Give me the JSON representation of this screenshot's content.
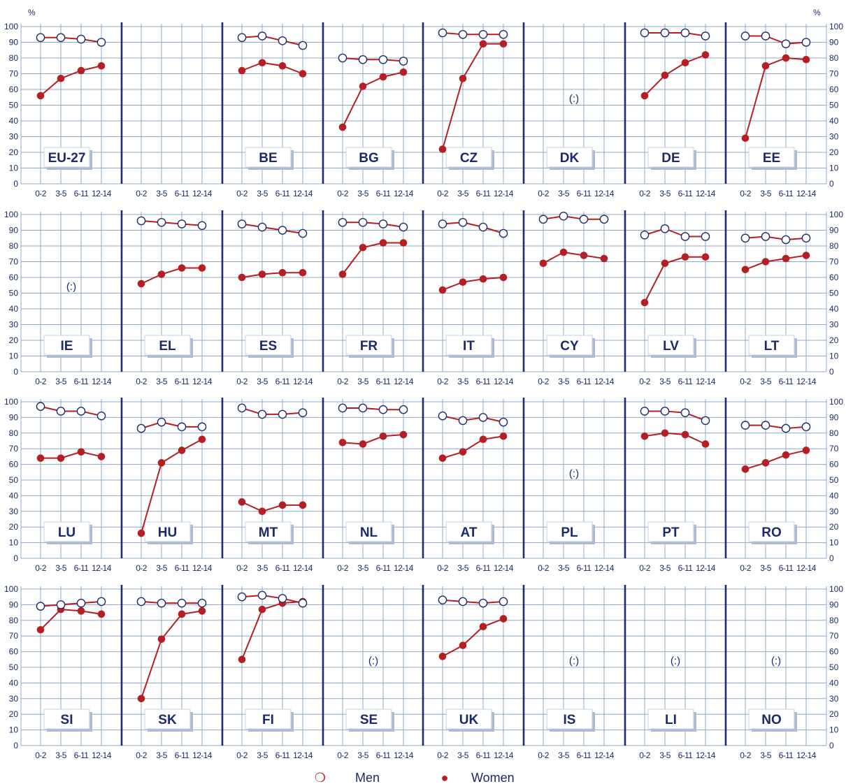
{
  "colors": {
    "grid": "#8ea8c8",
    "divider": "#1f2d6e",
    "text": "#1a2a6a",
    "men": "#b51f24",
    "women": "#b51f24",
    "label_shadow": "#aabbd3"
  },
  "chart_data": {
    "type": "line",
    "unit": "%",
    "categories": [
      "0-2",
      "3-5",
      "6-11",
      "12-14"
    ],
    "yticks": [
      "0",
      "10",
      "20",
      "30",
      "40",
      "50",
      "60",
      "70",
      "80",
      "90",
      "100"
    ],
    "ylim": [
      0,
      100
    ],
    "grid": true,
    "legend": {
      "position": "bottom-center",
      "men_label": "Men",
      "women_label": "Women",
      "men_symbol": "❍",
      "women_symbol": "●"
    },
    "missing_label": "(:)",
    "rows": [
      [
        {
          "code": "EU-27",
          "men": [
            93,
            93,
            92,
            90
          ],
          "women": [
            56,
            67,
            72,
            75
          ]
        },
        {
          "code": "",
          "men": null,
          "women": null
        },
        {
          "code": "BE",
          "men": [
            93,
            94,
            91,
            88
          ],
          "women": [
            72,
            77,
            75,
            70
          ]
        },
        {
          "code": "BG",
          "men": [
            80,
            79,
            79,
            78
          ],
          "women": [
            36,
            62,
            68,
            71
          ]
        },
        {
          "code": "CZ",
          "men": [
            96,
            95,
            95,
            95
          ],
          "women": [
            22,
            67,
            89,
            89
          ]
        },
        {
          "code": "DK",
          "men": null,
          "women": null
        },
        {
          "code": "DE",
          "men": [
            96,
            96,
            96,
            94
          ],
          "women": [
            56,
            69,
            77,
            82
          ]
        },
        {
          "code": "EE",
          "men": [
            94,
            94,
            89,
            90
          ],
          "women": [
            29,
            75,
            80,
            79
          ]
        }
      ],
      [
        {
          "code": "IE",
          "men": null,
          "women": null
        },
        {
          "code": "EL",
          "men": [
            96,
            95,
            94,
            93
          ],
          "women": [
            56,
            62,
            66,
            66
          ]
        },
        {
          "code": "ES",
          "men": [
            94,
            92,
            90,
            88
          ],
          "women": [
            60,
            62,
            63,
            63
          ]
        },
        {
          "code": "FR",
          "men": [
            95,
            95,
            94,
            92
          ],
          "women": [
            62,
            79,
            82,
            82
          ]
        },
        {
          "code": "IT",
          "men": [
            94,
            95,
            92,
            88
          ],
          "women": [
            52,
            57,
            59,
            60
          ]
        },
        {
          "code": "CY",
          "men": [
            97,
            99,
            97,
            97
          ],
          "women": [
            69,
            76,
            74,
            72
          ]
        },
        {
          "code": "LV",
          "men": [
            87,
            91,
            86,
            86
          ],
          "women": [
            44,
            69,
            73,
            73
          ]
        },
        {
          "code": "LT",
          "men": [
            85,
            86,
            84,
            85
          ],
          "women": [
            65,
            70,
            72,
            74
          ]
        }
      ],
      [
        {
          "code": "LU",
          "men": [
            97,
            94,
            94,
            91
          ],
          "women": [
            64,
            64,
            68,
            65
          ]
        },
        {
          "code": "HU",
          "men": [
            83,
            87,
            84,
            84
          ],
          "women": [
            16,
            61,
            69,
            76
          ]
        },
        {
          "code": "MT",
          "men": [
            96,
            92,
            92,
            93
          ],
          "women": [
            36,
            30,
            34,
            34
          ]
        },
        {
          "code": "NL",
          "men": [
            96,
            96,
            95,
            95
          ],
          "women": [
            74,
            73,
            78,
            79
          ]
        },
        {
          "code": "AT",
          "men": [
            91,
            88,
            90,
            87
          ],
          "women": [
            64,
            68,
            76,
            78
          ]
        },
        {
          "code": "PL",
          "men": null,
          "women": null
        },
        {
          "code": "PT",
          "men": [
            94,
            94,
            93,
            88
          ],
          "women": [
            78,
            80,
            79,
            73
          ]
        },
        {
          "code": "RO",
          "men": [
            85,
            85,
            83,
            84
          ],
          "women": [
            57,
            61,
            66,
            69
          ]
        }
      ],
      [
        {
          "code": "SI",
          "men": [
            89,
            90,
            91,
            92
          ],
          "women": [
            74,
            87,
            86,
            84
          ]
        },
        {
          "code": "SK",
          "men": [
            92,
            91,
            91,
            91
          ],
          "women": [
            30,
            68,
            84,
            86
          ]
        },
        {
          "code": "FI",
          "men": [
            95,
            96,
            94,
            91
          ],
          "women": [
            55,
            87,
            91,
            92
          ]
        },
        {
          "code": "SE",
          "men": null,
          "women": null
        },
        {
          "code": "UK",
          "men": [
            93,
            92,
            91,
            92
          ],
          "women": [
            57,
            64,
            76,
            81
          ]
        },
        {
          "code": "IS",
          "men": null,
          "women": null
        },
        {
          "code": "LI",
          "men": null,
          "women": null
        },
        {
          "code": "NO",
          "men": null,
          "women": null
        }
      ]
    ]
  }
}
